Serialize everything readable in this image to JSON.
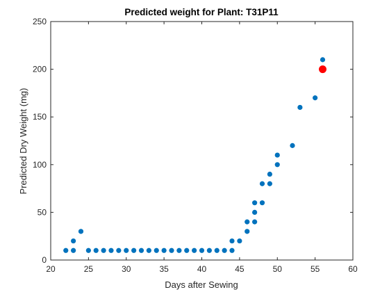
{
  "chart_data": {
    "type": "scatter",
    "title": "Predicted weight for Plant: T31P11",
    "xlabel": "Days after Sewing",
    "ylabel": "Predicted Dry Weight (mg)",
    "xlim": [
      20,
      60
    ],
    "ylim": [
      0,
      250
    ],
    "xticks": [
      20,
      25,
      30,
      35,
      40,
      45,
      50,
      55,
      60
    ],
    "yticks": [
      0,
      50,
      100,
      150,
      200,
      250
    ],
    "grid": false,
    "colors": {
      "series": "#0072BD",
      "highlight": "#FF0000",
      "axes": "#262626"
    },
    "series": [
      {
        "x": [
          22,
          23,
          23,
          24,
          25,
          26,
          27,
          28,
          29,
          30,
          31,
          32,
          33,
          34,
          35,
          36,
          37,
          38,
          39,
          40,
          41,
          42,
          43,
          44,
          44,
          45,
          46,
          46,
          47,
          47,
          47,
          48,
          48,
          49,
          49,
          50,
          50,
          52,
          53,
          55,
          56
        ],
        "y": [
          10,
          10,
          20,
          30,
          10,
          10,
          10,
          10,
          10,
          10,
          10,
          10,
          10,
          10,
          10,
          10,
          10,
          10,
          10,
          10,
          10,
          10,
          10,
          10,
          20,
          20,
          30,
          40,
          40,
          50,
          60,
          60,
          80,
          80,
          90,
          100,
          110,
          120,
          160,
          170,
          210
        ]
      }
    ],
    "highlight": {
      "x": 56,
      "y": 200
    }
  }
}
